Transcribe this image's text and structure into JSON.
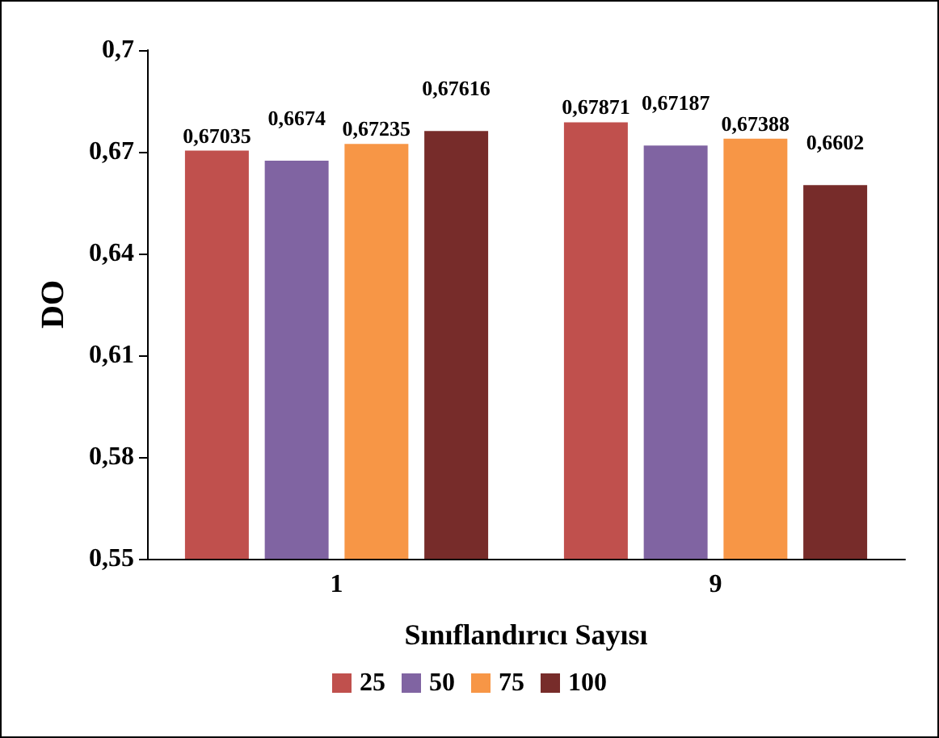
{
  "chart_data": {
    "type": "bar",
    "categories": [
      "1",
      "9"
    ],
    "xlabel": "Sınıflandırıcı Sayısı",
    "ylabel": "DO",
    "series": [
      {
        "name": "25",
        "color": "#c0504d",
        "values": [
          0.67035,
          0.67871
        ],
        "value_labels": [
          "0,67035",
          "0,67871"
        ]
      },
      {
        "name": "50",
        "color": "#8064a2",
        "values": [
          0.6674,
          0.67187
        ],
        "value_labels": [
          "0,6674",
          "0,67187"
        ]
      },
      {
        "name": "75",
        "color": "#f79646",
        "values": [
          0.67235,
          0.67388
        ],
        "value_labels": [
          "0,67235",
          "0,67388"
        ]
      },
      {
        "name": "100",
        "color": "#772c2a",
        "values": [
          0.67616,
          0.6602
        ],
        "value_labels": [
          "0,67616",
          "0,6602"
        ]
      }
    ],
    "ylim": [
      0.55,
      0.7
    ],
    "yticks": [
      {
        "value": 0.55,
        "label": "0,55"
      },
      {
        "value": 0.58,
        "label": "0,58"
      },
      {
        "value": 0.61,
        "label": "0,61"
      },
      {
        "value": 0.64,
        "label": "0,64"
      },
      {
        "value": 0.67,
        "label": "0,67"
      },
      {
        "value": 0.7,
        "label": "0,7"
      }
    ],
    "grid": false,
    "legend": "bottom"
  }
}
